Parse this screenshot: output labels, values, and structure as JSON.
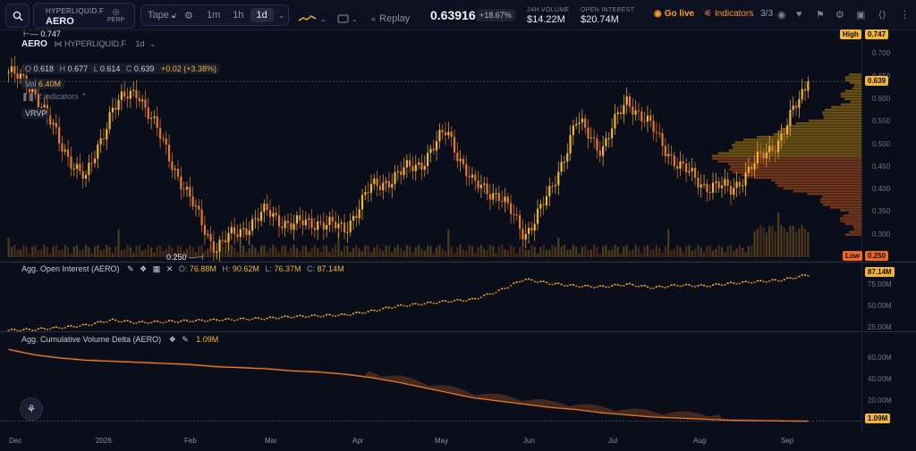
{
  "toolbar": {
    "exchange": "HYPERLIQUID.F",
    "symbol": "AERO",
    "contract": "PERP",
    "tape_label": "Tape",
    "timeframes": [
      "1m",
      "1h",
      "1d"
    ],
    "active_timeframe": "1d",
    "replay_label": "Replay",
    "last_price": "0.63916",
    "change_pct": "+18.67%",
    "volume_label": "24H VOLUME",
    "volume_value": "$14.22M",
    "oi_label": "OPEN INTEREST",
    "oi_value": "$20.74M",
    "go_live_label": "Go live",
    "indicators_label": "Indicators",
    "indicators_count": "3/3"
  },
  "chart": {
    "title_symbol": "AERO",
    "title_exchange": "HYPERLIQUID.F",
    "title_interval": "1d",
    "open_label": "O",
    "open": "0.618",
    "high_label": "H",
    "high": "0.677",
    "low_label": "L",
    "low": "0.614",
    "close_label": "C",
    "close": "0.639",
    "change": "+0.02 (+3.38%)",
    "vol_label": "Vol",
    "vol": "6.40M",
    "indicators_hidden": "2 indicators",
    "vrvp_label": "VRVP",
    "high_marker": "0.747",
    "low_marker": "0.250",
    "high_tag_label": "High",
    "high_tag_value": "0.747",
    "last_tag": "0.639",
    "low_tag_label": "Low",
    "low_tag_value": "0.250",
    "price_axis": [
      "0.700",
      "0.650",
      "0.600",
      "0.550",
      "0.500",
      "0.450",
      "0.400",
      "0.350",
      "0.300"
    ],
    "oi_title": "Agg. Open Interest (AERO)",
    "oi_o_label": "O:",
    "oi_o": "76.88M",
    "oi_h_label": "H:",
    "oi_h": "90.62M",
    "oi_l_label": "L:",
    "oi_l": "76.37M",
    "oi_c_label": "C:",
    "oi_c": "87.14M",
    "oi_axis": [
      "75.00M",
      "50.00M",
      "25.00M"
    ],
    "oi_tag": "87.14M",
    "cvd_title": "Agg. Cumulative Volume Delta (AERO)",
    "cvd_value": "1.09M",
    "cvd_axis": [
      "60.00M",
      "40.00M",
      "20.00M"
    ],
    "cvd_tag": "1.09M",
    "x_labels": [
      "Dec",
      "2026",
      "Feb",
      "Mar",
      "Apr",
      "May",
      "Jun",
      "Jul",
      "Aug",
      "Sep"
    ]
  },
  "colors": {
    "up": "#f2b632",
    "down": "#e8792b",
    "accent": "#ff9a2e",
    "background": "#0a0d1a"
  },
  "chart_data": {
    "type": "candlestick",
    "interval": "1d",
    "x_range": [
      "Dec",
      "Sep"
    ],
    "price_ylim": [
      0.25,
      0.75
    ],
    "close_path": [
      {
        "month": "Dec",
        "close": 0.66
      },
      {
        "month": "Dec",
        "close": 0.62
      },
      {
        "month": "Dec",
        "close": 0.5
      },
      {
        "month": "2026",
        "close": 0.42
      },
      {
        "month": "2026",
        "close": 0.58
      },
      {
        "month": "2026",
        "close": 0.62
      },
      {
        "month": "2026",
        "close": 0.5
      },
      {
        "month": "Feb",
        "close": 0.38
      },
      {
        "month": "Feb",
        "close": 0.27
      },
      {
        "month": "Feb",
        "close": 0.31
      },
      {
        "month": "Mar",
        "close": 0.35
      },
      {
        "month": "Mar",
        "close": 0.32
      },
      {
        "month": "Mar",
        "close": 0.33
      },
      {
        "month": "Apr",
        "close": 0.31
      },
      {
        "month": "Apr",
        "close": 0.4
      },
      {
        "month": "Apr",
        "close": 0.43
      },
      {
        "month": "May",
        "close": 0.46
      },
      {
        "month": "May",
        "close": 0.53
      },
      {
        "month": "May",
        "close": 0.41
      },
      {
        "month": "Jun",
        "close": 0.39
      },
      {
        "month": "Jun",
        "close": 0.3
      },
      {
        "month": "Jun",
        "close": 0.39
      },
      {
        "month": "Jul",
        "close": 0.55
      },
      {
        "month": "Jul",
        "close": 0.49
      },
      {
        "month": "Jul",
        "close": 0.6
      },
      {
        "month": "Jul",
        "close": 0.53
      },
      {
        "month": "Aug",
        "close": 0.45
      },
      {
        "month": "Aug",
        "close": 0.41
      },
      {
        "month": "Aug",
        "close": 0.4
      },
      {
        "month": "Sep",
        "close": 0.46
      },
      {
        "month": "Sep",
        "close": 0.52
      },
      {
        "month": "Sep",
        "close": 0.639
      }
    ],
    "open_interest_ylim": [
      25,
      90
    ],
    "open_interest_M": [
      22,
      23,
      25,
      28,
      34,
      31,
      32,
      33,
      34,
      35,
      36,
      38,
      39,
      40,
      44,
      50,
      53,
      56,
      58,
      68,
      82,
      77,
      74,
      73,
      76,
      72,
      75,
      74,
      77,
      79,
      81,
      87.14
    ],
    "cvd_ylim": [
      0,
      70
    ],
    "cvd_M": [
      68,
      63,
      60,
      58,
      57,
      56,
      55,
      54,
      52,
      51,
      50,
      48,
      47,
      45,
      42,
      38,
      33,
      28,
      23,
      20,
      17,
      14,
      12,
      9,
      7,
      5,
      4,
      3,
      2,
      1.6,
      1.3,
      1.09
    ]
  }
}
